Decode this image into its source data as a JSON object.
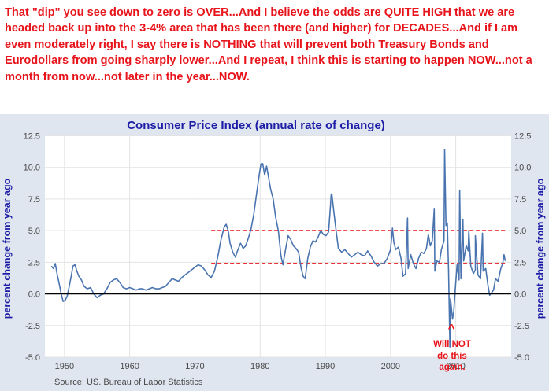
{
  "commentary": "That \"dip\" you see down to zero is OVER...And I believe the odds are QUITE HIGH that we are headed back up into the 3-4% area that has been there (and higher) for DECADES...And if I am even moderately right, I say there is NOTHING that will prevent both Treasury Bonds and Eurodollars from going sharply lower...And I repeat, I think this is starting to happen NOW...not a month from now...not later in the year...NOW.",
  "colors": {
    "commentary": "#e8141b",
    "series": "#4a74b0",
    "title": "#1c1ca6",
    "reference_lines": "#e8141b",
    "panel_background": "#dfe6ef",
    "plot_background": "#ffffff"
  },
  "chart_data": {
    "type": "line",
    "title": "Consumer Price Index (annual rate of change)",
    "ylabel_left": "percent change from year ago",
    "ylabel_right": "percent change from year ago",
    "source": "Source: US. Bureau of Labor Statistics",
    "xlim": [
      1947,
      2018.5
    ],
    "ylim": [
      -5.0,
      12.5
    ],
    "x_ticks": [
      "1950",
      "1960",
      "1970",
      "1980",
      "1990",
      "2000",
      "2010"
    ],
    "y_ticks": [
      "12.5",
      "10.0",
      "7.5",
      "5.0",
      "2.5",
      "0.0",
      "-2.5",
      "-5.0"
    ],
    "grid": true,
    "zero_line": true,
    "reference_lines": [
      {
        "y": 5.0,
        "x_start": 1972.5,
        "x_end": 2017.8,
        "style": "dashed"
      },
      {
        "y": 2.4,
        "x_start": 1972.5,
        "x_end": 2017.8,
        "style": "dashed"
      }
    ],
    "annotation": {
      "caret": "^",
      "lines": [
        "Will NOT",
        "do this",
        "again."
      ],
      "x": 2015.3,
      "y": -0.3
    },
    "series": [
      {
        "points": [
          [
            1948.0,
            2.2
          ],
          [
            1948.3,
            2.0
          ],
          [
            1948.6,
            2.4
          ],
          [
            1948.9,
            1.5
          ],
          [
            1949.2,
            0.8
          ],
          [
            1949.5,
            0.0
          ],
          [
            1949.8,
            -0.6
          ],
          [
            1950.1,
            -0.5
          ],
          [
            1950.4,
            -0.2
          ],
          [
            1950.7,
            0.5
          ],
          [
            1951.0,
            1.3
          ],
          [
            1951.3,
            2.2
          ],
          [
            1951.6,
            2.3
          ],
          [
            1951.9,
            1.8
          ],
          [
            1952.2,
            1.4
          ],
          [
            1952.6,
            1.1
          ],
          [
            1953.0,
            0.6
          ],
          [
            1953.5,
            0.4
          ],
          [
            1954.0,
            0.5
          ],
          [
            1954.5,
            0.0
          ],
          [
            1955.0,
            -0.3
          ],
          [
            1955.5,
            -0.1
          ],
          [
            1956.0,
            0.0
          ],
          [
            1956.5,
            0.4
          ],
          [
            1957.0,
            0.9
          ],
          [
            1957.5,
            1.1
          ],
          [
            1958.0,
            1.2
          ],
          [
            1958.5,
            0.9
          ],
          [
            1959.0,
            0.5
          ],
          [
            1959.5,
            0.4
          ],
          [
            1960.0,
            0.5
          ],
          [
            1960.5,
            0.4
          ],
          [
            1961.0,
            0.3
          ],
          [
            1961.5,
            0.4
          ],
          [
            1962.0,
            0.4
          ],
          [
            1962.5,
            0.3
          ],
          [
            1963.0,
            0.4
          ],
          [
            1963.5,
            0.5
          ],
          [
            1964.0,
            0.4
          ],
          [
            1964.5,
            0.4
          ],
          [
            1965.0,
            0.5
          ],
          [
            1965.5,
            0.6
          ],
          [
            1966.0,
            0.9
          ],
          [
            1966.5,
            1.2
          ],
          [
            1967.0,
            1.1
          ],
          [
            1967.5,
            1.0
          ],
          [
            1968.0,
            1.3
          ],
          [
            1968.5,
            1.5
          ],
          [
            1969.0,
            1.7
          ],
          [
            1969.5,
            1.9
          ],
          [
            1970.0,
            2.1
          ],
          [
            1970.5,
            2.3
          ],
          [
            1971.0,
            2.2
          ],
          [
            1971.5,
            1.9
          ],
          [
            1972.0,
            1.5
          ],
          [
            1972.5,
            1.3
          ],
          [
            1973.0,
            1.8
          ],
          [
            1973.5,
            2.9
          ],
          [
            1974.0,
            4.3
          ],
          [
            1974.5,
            5.3
          ],
          [
            1974.8,
            5.5
          ],
          [
            1975.1,
            5.0
          ],
          [
            1975.4,
            4.0
          ],
          [
            1975.8,
            3.3
          ],
          [
            1976.2,
            2.9
          ],
          [
            1976.6,
            3.5
          ],
          [
            1977.0,
            4.0
          ],
          [
            1977.4,
            3.6
          ],
          [
            1977.8,
            3.8
          ],
          [
            1978.2,
            4.4
          ],
          [
            1978.6,
            5.1
          ],
          [
            1979.0,
            6.2
          ],
          [
            1979.4,
            7.7
          ],
          [
            1979.8,
            9.2
          ],
          [
            1980.1,
            10.2
          ],
          [
            1980.4,
            10.3
          ],
          [
            1980.7,
            9.4
          ],
          [
            1981.0,
            10.1
          ],
          [
            1981.3,
            9.2
          ],
          [
            1981.6,
            8.3
          ],
          [
            1982.0,
            7.5
          ],
          [
            1982.4,
            6.0
          ],
          [
            1982.8,
            5.0
          ],
          [
            1983.2,
            3.0
          ],
          [
            1983.5,
            2.3
          ],
          [
            1983.9,
            3.5
          ],
          [
            1984.3,
            4.6
          ],
          [
            1984.7,
            4.3
          ],
          [
            1985.1,
            3.8
          ],
          [
            1985.5,
            3.6
          ],
          [
            1985.9,
            3.3
          ],
          [
            1986.3,
            2.0
          ],
          [
            1986.6,
            1.4
          ],
          [
            1986.9,
            1.2
          ],
          [
            1987.3,
            2.8
          ],
          [
            1987.7,
            3.7
          ],
          [
            1988.1,
            4.2
          ],
          [
            1988.5,
            4.1
          ],
          [
            1988.9,
            4.5
          ],
          [
            1989.3,
            5.0
          ],
          [
            1989.7,
            4.7
          ],
          [
            1990.1,
            4.6
          ],
          [
            1990.5,
            4.9
          ],
          [
            1990.8,
            7.1
          ],
          [
            1991.0,
            7.9
          ],
          [
            1991.3,
            6.5
          ],
          [
            1991.6,
            5.2
          ],
          [
            1992.0,
            3.6
          ],
          [
            1992.5,
            3.3
          ],
          [
            1993.0,
            3.5
          ],
          [
            1993.5,
            3.2
          ],
          [
            1994.0,
            2.9
          ],
          [
            1994.5,
            3.1
          ],
          [
            1995.0,
            3.3
          ],
          [
            1995.5,
            3.1
          ],
          [
            1996.0,
            3.0
          ],
          [
            1996.5,
            3.4
          ],
          [
            1997.0,
            3.0
          ],
          [
            1997.5,
            2.5
          ],
          [
            1998.0,
            2.2
          ],
          [
            1998.5,
            2.4
          ],
          [
            1999.0,
            2.4
          ],
          [
            1999.5,
            2.8
          ],
          [
            2000.0,
            3.5
          ],
          [
            2000.5,
            4.1
          ],
          [
            2000.8,
            3.5
          ],
          [
            2001.2,
            3.7
          ],
          [
            2001.6,
            2.8
          ],
          [
            2001.9,
            1.4
          ],
          [
            2002.3,
            1.6
          ],
          [
            2002.7,
            2.0
          ],
          [
            2003.1,
            3.1
          ],
          [
            2003.5,
            2.4
          ],
          [
            2003.9,
            2.0
          ],
          [
            2004.3,
            2.8
          ],
          [
            2004.7,
            3.3
          ],
          [
            2005.1,
            3.2
          ],
          [
            2005.5,
            3.6
          ],
          [
            2005.8,
            4.7
          ],
          [
            2006.1,
            3.8
          ],
          [
            2006.4,
            4.2
          ],
          [
            2006.8,
            1.8
          ],
          [
            2007.1,
            2.6
          ],
          [
            2007.5,
            2.5
          ],
          [
            2007.8,
            3.5
          ],
          [
            2008.2,
            4.2
          ],
          [
            2008.5,
            5.4
          ],
          [
            2008.7,
            5.6
          ],
          [
            2008.9,
            1.8
          ],
          [
            2009.2,
            -0.4
          ],
          [
            2009.5,
            -2.0
          ],
          [
            2009.7,
            -1.4
          ],
          [
            2009.9,
            0.2
          ],
          [
            2010.2,
            2.3
          ],
          [
            2010.5,
            1.1
          ],
          [
            2010.8,
            1.2
          ],
          [
            2011.2,
            2.6
          ],
          [
            2011.6,
            3.8
          ],
          [
            2011.9,
            3.4
          ],
          [
            2012.3,
            2.2
          ],
          [
            2012.7,
            1.6
          ],
          [
            2013.0,
            1.9
          ],
          [
            2013.4,
            1.5
          ],
          [
            2013.8,
            1.2
          ],
          [
            2014.2,
            1.8
          ],
          [
            2014.6,
            2.0
          ],
          [
            2014.9,
            0.8
          ],
          [
            2015.2,
            -0.1
          ],
          [
            2015.5,
            0.1
          ],
          [
            2015.8,
            0.3
          ],
          [
            2016.1,
            1.2
          ],
          [
            2016.5,
            1.0
          ],
          [
            2016.9,
            2.0
          ],
          [
            2017.2,
            2.4
          ],
          [
            2017.4,
            3.1
          ],
          [
            2017.6,
            2.6
          ]
        ],
        "spikes": [
          [
            2008.3,
            11.4
          ],
          [
            2009.1,
            -4.2
          ],
          [
            2010.6,
            8.2
          ],
          [
            2011.1,
            5.9
          ],
          [
            2012.0,
            5.0
          ],
          [
            2013.0,
            4.6
          ],
          [
            2002.6,
            6.0
          ],
          [
            1990.9,
            7.9
          ],
          [
            2006.7,
            6.7
          ],
          [
            2014.1,
            4.8
          ],
          [
            2000.3,
            5.2
          ],
          [
            1980.2,
            10.3
          ]
        ]
      }
    ]
  }
}
